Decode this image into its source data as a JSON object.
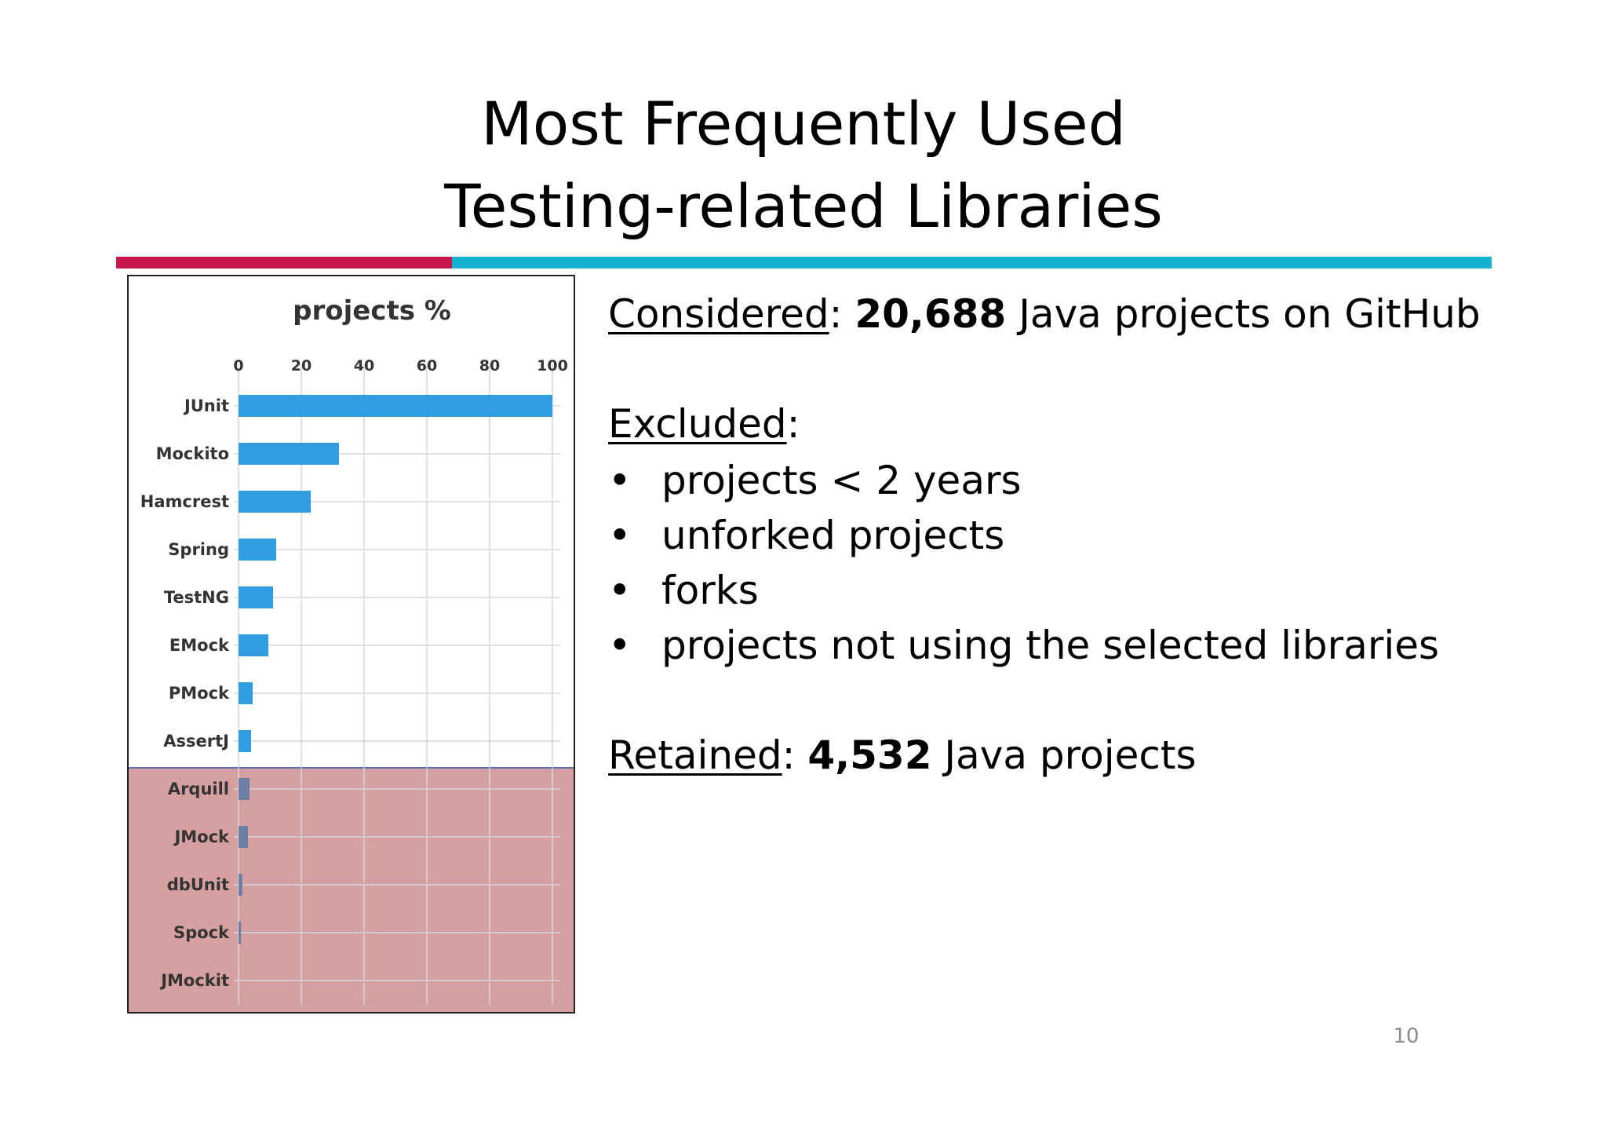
{
  "slide": {
    "title_line1": "Most Frequently Used",
    "title_line2": "Testing-related Libraries",
    "page_number": "10",
    "colors": {
      "rule_left": "#c8154c",
      "rule_right": "#14b1d1"
    }
  },
  "text": {
    "considered_label": "Considered",
    "considered_sep": ": ",
    "considered_count": "20,688",
    "considered_rest": " Java projects on GitHub",
    "excluded_label": "Excluded",
    "excluded_sep": ":",
    "bullet_symbol": "•",
    "excluded_items": [
      "projects < 2 years",
      "unforked projects",
      "forks",
      "projects not using the selected libraries"
    ],
    "retained_label": "Retained",
    "retained_sep": ": ",
    "retained_count": "4,532",
    "retained_rest": " Java projects"
  },
  "chart_data": {
    "type": "bar",
    "orientation": "horizontal",
    "title": "projects %",
    "xlabel": "",
    "ylabel": "",
    "xlim": [
      0,
      100
    ],
    "xticks": [
      0,
      20,
      40,
      60,
      80,
      100
    ],
    "grid": true,
    "categories": [
      "JUnit",
      "Mockito",
      "Hamcrest",
      "Spring",
      "TestNG",
      "EMock",
      "PMock",
      "AssertJ",
      "Arquill",
      "JMock",
      "dbUnit",
      "Spock",
      "JMockit"
    ],
    "values": [
      100,
      32,
      23,
      12,
      11,
      9.5,
      4.5,
      4,
      3.5,
      3,
      1.2,
      0.8,
      0
    ],
    "highlighted_categories": [
      "Arquill",
      "JMock",
      "dbUnit",
      "Spock",
      "JMockit"
    ],
    "colors": {
      "bar": "#2f9de0",
      "bar_highlighted": "#6c7ea3",
      "grid": "#d6d6de",
      "highlight_fill": "#cf9a9b"
    }
  }
}
